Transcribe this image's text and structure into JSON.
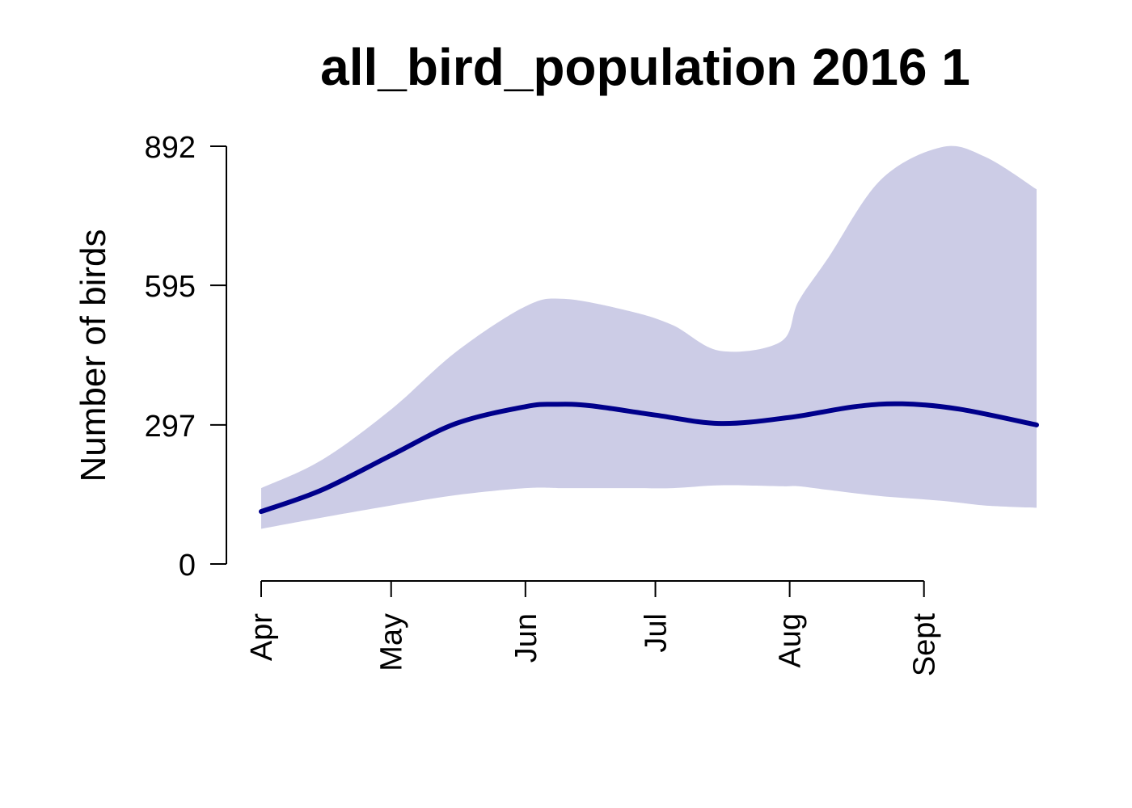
{
  "chart_data": {
    "type": "area",
    "title": "all_bird_population 2016 1",
    "xlabel": "",
    "ylabel": "Number of birds",
    "ylim": [
      0,
      892
    ],
    "yticks": [
      0,
      297,
      595,
      892
    ],
    "x_tick_labels": [
      "Apr",
      "May",
      "Jun",
      "Jul",
      "Aug",
      "Sept"
    ],
    "x_tick_dates": [
      "2016-04-01",
      "2016-05-01",
      "2016-06-01",
      "2016-07-01",
      "2016-08-01",
      "2016-09-01"
    ],
    "x_range": [
      "2016-04-01",
      "2016-09-27"
    ],
    "grid": false,
    "legend": "none",
    "colors": {
      "line": "#00008B",
      "band": "#CCCCE6"
    },
    "series": [
      {
        "type": "line",
        "points": [
          {
            "x": "2016-04-01",
            "y": 112
          },
          {
            "x": "2016-04-15",
            "y": 158
          },
          {
            "x": "2016-05-01",
            "y": 232
          },
          {
            "x": "2016-05-16",
            "y": 300
          },
          {
            "x": "2016-06-01",
            "y": 336
          },
          {
            "x": "2016-06-08",
            "y": 341
          },
          {
            "x": "2016-06-16",
            "y": 338
          },
          {
            "x": "2016-07-01",
            "y": 318
          },
          {
            "x": "2016-07-16",
            "y": 300
          },
          {
            "x": "2016-08-01",
            "y": 313
          },
          {
            "x": "2016-08-16",
            "y": 336
          },
          {
            "x": "2016-08-27",
            "y": 342
          },
          {
            "x": "2016-09-09",
            "y": 331
          },
          {
            "x": "2016-09-27",
            "y": 297
          }
        ]
      },
      {
        "type": "band",
        "points": [
          {
            "x": "2016-04-01",
            "low": 75,
            "high": 162
          },
          {
            "x": "2016-04-15",
            "low": 99,
            "high": 222
          },
          {
            "x": "2016-05-01",
            "low": 125,
            "high": 330
          },
          {
            "x": "2016-05-16",
            "low": 147,
            "high": 453
          },
          {
            "x": "2016-06-01",
            "low": 162,
            "high": 550
          },
          {
            "x": "2016-06-10",
            "low": 162,
            "high": 566
          },
          {
            "x": "2016-06-25",
            "low": 162,
            "high": 540
          },
          {
            "x": "2016-07-05",
            "low": 162,
            "high": 510
          },
          {
            "x": "2016-07-16",
            "low": 168,
            "high": 455
          },
          {
            "x": "2016-07-30",
            "low": 166,
            "high": 475
          },
          {
            "x": "2016-08-03",
            "low": 166,
            "high": 560
          },
          {
            "x": "2016-08-10",
            "low": 158,
            "high": 655
          },
          {
            "x": "2016-08-22",
            "low": 145,
            "high": 820
          },
          {
            "x": "2016-09-05",
            "low": 135,
            "high": 890
          },
          {
            "x": "2016-09-15",
            "low": 125,
            "high": 870
          },
          {
            "x": "2016-09-27",
            "low": 120,
            "high": 800
          }
        ]
      }
    ]
  }
}
